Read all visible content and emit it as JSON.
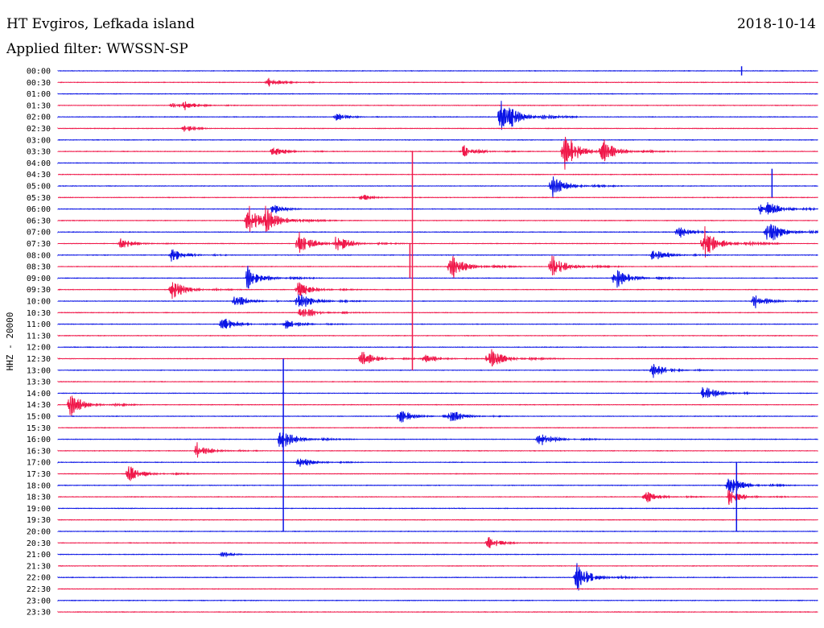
{
  "header": {
    "station": "HT Evgiros, Lefkada island",
    "date": "2018-10-14",
    "filter": "Applied filter: WWSSN-SP"
  },
  "colors": {
    "blue": "#0a14e6",
    "red": "#f0184a",
    "text": "#000000"
  },
  "chart_data": {
    "type": "line",
    "ylabel": "HHZ - 20000",
    "row_labels": [
      "00:00",
      "00:30",
      "01:00",
      "01:30",
      "02:00",
      "02:30",
      "03:00",
      "03:30",
      "04:00",
      "04:30",
      "05:00",
      "05:30",
      "06:00",
      "06:30",
      "07:00",
      "07:30",
      "08:00",
      "08:30",
      "09:00",
      "09:30",
      "10:00",
      "10:30",
      "11:00",
      "11:30",
      "12:00",
      "12:30",
      "13:00",
      "13:30",
      "14:00",
      "14:30",
      "15:00",
      "15:30",
      "16:00",
      "16:30",
      "17:00",
      "17:30",
      "18:00",
      "18:30",
      "19:00",
      "19:30",
      "20:00",
      "20:30",
      "21:00",
      "21:30",
      "22:00",
      "22:30",
      "23:00",
      "23:30"
    ],
    "row_colors": [
      "blue",
      "red"
    ],
    "rows_minutes": 30,
    "events": [
      {
        "row": 1,
        "t": 8.3,
        "a": 1.2
      },
      {
        "row": 3,
        "t": 5.0,
        "a": 1.2
      },
      {
        "row": 3,
        "t": 4.5,
        "a": 0.6
      },
      {
        "row": 4,
        "t": 17.5,
        "a": 6.0
      },
      {
        "row": 4,
        "t": 11.0,
        "a": 1.0
      },
      {
        "row": 5,
        "t": 5.0,
        "a": 0.8
      },
      {
        "row": 7,
        "t": 8.5,
        "a": 1.5
      },
      {
        "row": 7,
        "t": 16.0,
        "a": 1.8
      },
      {
        "row": 7,
        "t": 20.0,
        "a": 5.0
      },
      {
        "row": 7,
        "t": 21.5,
        "a": 3.5
      },
      {
        "row": 10,
        "t": 19.5,
        "a": 3.0
      },
      {
        "row": 11,
        "t": 12.0,
        "a": 0.8
      },
      {
        "row": 12,
        "t": 8.5,
        "a": 1.2
      },
      {
        "row": 12,
        "t": 27.8,
        "a": 3.0
      },
      {
        "row": 13,
        "t": 7.5,
        "a": 4.0
      },
      {
        "row": 13,
        "t": 8.2,
        "a": 3.5
      },
      {
        "row": 14,
        "t": 24.5,
        "a": 1.6
      },
      {
        "row": 14,
        "t": 28.0,
        "a": 3.5
      },
      {
        "row": 15,
        "t": 2.5,
        "a": 1.4
      },
      {
        "row": 15,
        "t": 9.5,
        "a": 3.0
      },
      {
        "row": 15,
        "t": 11.0,
        "a": 2.5
      },
      {
        "row": 15,
        "t": 25.5,
        "a": 4.5
      },
      {
        "row": 16,
        "t": 4.5,
        "a": 1.8
      },
      {
        "row": 16,
        "t": 23.5,
        "a": 1.8
      },
      {
        "row": 17,
        "t": 15.5,
        "a": 3.5
      },
      {
        "row": 17,
        "t": 19.5,
        "a": 3.0
      },
      {
        "row": 18,
        "t": 7.5,
        "a": 3.0
      },
      {
        "row": 18,
        "t": 22.0,
        "a": 3.0
      },
      {
        "row": 19,
        "t": 4.5,
        "a": 2.5
      },
      {
        "row": 19,
        "t": 9.5,
        "a": 2.0
      },
      {
        "row": 20,
        "t": 7.0,
        "a": 1.8
      },
      {
        "row": 20,
        "t": 9.5,
        "a": 2.5
      },
      {
        "row": 20,
        "t": 27.5,
        "a": 2.0
      },
      {
        "row": 21,
        "t": 9.6,
        "a": 2.0
      },
      {
        "row": 22,
        "t": 6.5,
        "a": 1.8
      },
      {
        "row": 22,
        "t": 9.0,
        "a": 1.6
      },
      {
        "row": 25,
        "t": 12.0,
        "a": 2.0
      },
      {
        "row": 25,
        "t": 14.5,
        "a": 1.2
      },
      {
        "row": 25,
        "t": 17.0,
        "a": 3.0
      },
      {
        "row": 26,
        "t": 23.5,
        "a": 2.0
      },
      {
        "row": 28,
        "t": 25.5,
        "a": 2.0
      },
      {
        "row": 29,
        "t": 0.5,
        "a": 3.0
      },
      {
        "row": 30,
        "t": 13.5,
        "a": 1.8
      },
      {
        "row": 30,
        "t": 15.5,
        "a": 1.8
      },
      {
        "row": 32,
        "t": 8.8,
        "a": 3.0
      },
      {
        "row": 32,
        "t": 19.0,
        "a": 2.2
      },
      {
        "row": 33,
        "t": 5.5,
        "a": 2.0
      },
      {
        "row": 34,
        "t": 9.5,
        "a": 1.8
      },
      {
        "row": 35,
        "t": 2.8,
        "a": 2.0
      },
      {
        "row": 36,
        "t": 26.5,
        "a": 2.5
      },
      {
        "row": 37,
        "t": 23.2,
        "a": 1.6
      },
      {
        "row": 37,
        "t": 26.5,
        "a": 2.0
      },
      {
        "row": 41,
        "t": 17.0,
        "a": 1.5
      },
      {
        "row": 42,
        "t": 6.5,
        "a": 0.6
      },
      {
        "row": 44,
        "t": 20.5,
        "a": 3.5
      }
    ],
    "spikes": [
      {
        "row": 7,
        "t": 14.0,
        "up": 0,
        "down": 19
      },
      {
        "row": 17,
        "t": 13.9,
        "up": 2,
        "down": 1
      },
      {
        "row": 26,
        "t": 8.9,
        "up": 1,
        "down": 14
      },
      {
        "row": 38,
        "t": 26.8,
        "up": 4,
        "down": 2
      },
      {
        "row": 10,
        "t": 28.2,
        "up": 1.5,
        "down": 1
      },
      {
        "row": 0,
        "t": 27.0,
        "up": 0.4,
        "down": 0.4
      }
    ]
  }
}
